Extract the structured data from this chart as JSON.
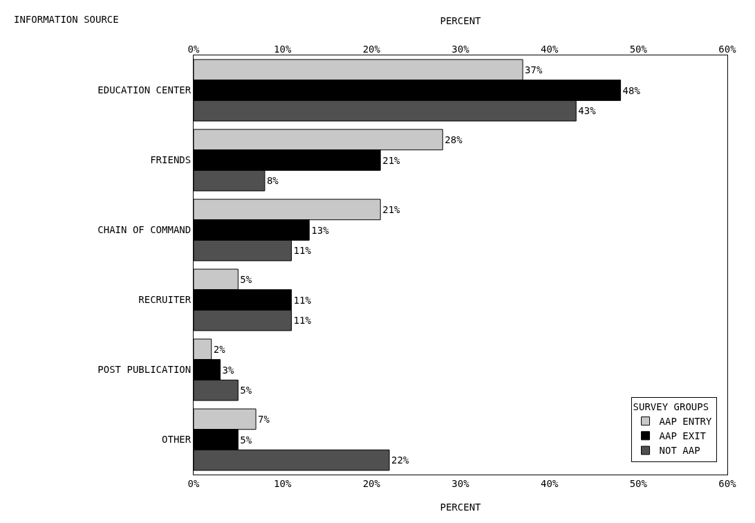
{
  "chart_data": {
    "type": "bar",
    "orientation": "horizontal",
    "ylabel": "INFORMATION SOURCE",
    "xlabel": "PERCENT",
    "x2label": "PERCENT",
    "categories": [
      "EDUCATION CENTER",
      "FRIENDS",
      "CHAIN OF COMMAND",
      "RECRUITER",
      "POST PUBLICATION",
      "OTHER"
    ],
    "series": [
      {
        "name": "AAP ENTRY",
        "color": "#c8c8c8",
        "values": [
          37,
          28,
          21,
          5,
          2,
          7
        ],
        "value_labels": [
          "37%",
          "28%",
          "21%",
          "5%",
          "2%",
          "7%"
        ]
      },
      {
        "name": "AAP EXIT",
        "color": "#000000",
        "values": [
          48,
          21,
          13,
          11,
          3,
          5
        ],
        "value_labels": [
          "48%",
          "21%",
          "13%",
          "11%",
          "3%",
          "5%"
        ]
      },
      {
        "name": "NOT AAP",
        "color": "#505050",
        "values": [
          43,
          8,
          11,
          11,
          5,
          22
        ],
        "value_labels": [
          "43%",
          "8%",
          "11%",
          "11%",
          "5%",
          "22%"
        ]
      }
    ],
    "xlim": [
      0,
      60
    ],
    "xticks": [
      {
        "value": 0,
        "label": "0%"
      },
      {
        "value": 10,
        "label": "10%"
      },
      {
        "value": 20,
        "label": "20%"
      },
      {
        "value": 30,
        "label": "30%"
      },
      {
        "value": 40,
        "label": "40%"
      },
      {
        "value": 50,
        "label": "50%"
      },
      {
        "value": 60,
        "label": "60%"
      }
    ],
    "x2lim": [
      0,
      60
    ],
    "x2ticks": [
      {
        "value": 0,
        "label": "0%"
      },
      {
        "value": 10,
        "label": "10%"
      },
      {
        "value": 20,
        "label": "20%"
      },
      {
        "value": 30,
        "label": "30%"
      },
      {
        "value": 40,
        "label": "40%"
      },
      {
        "value": 50,
        "label": "50%"
      },
      {
        "value": 60,
        "label": "60%"
      }
    ],
    "legend": "bottom right",
    "legend_title": "SURVEY GROUPS",
    "grid": false
  }
}
